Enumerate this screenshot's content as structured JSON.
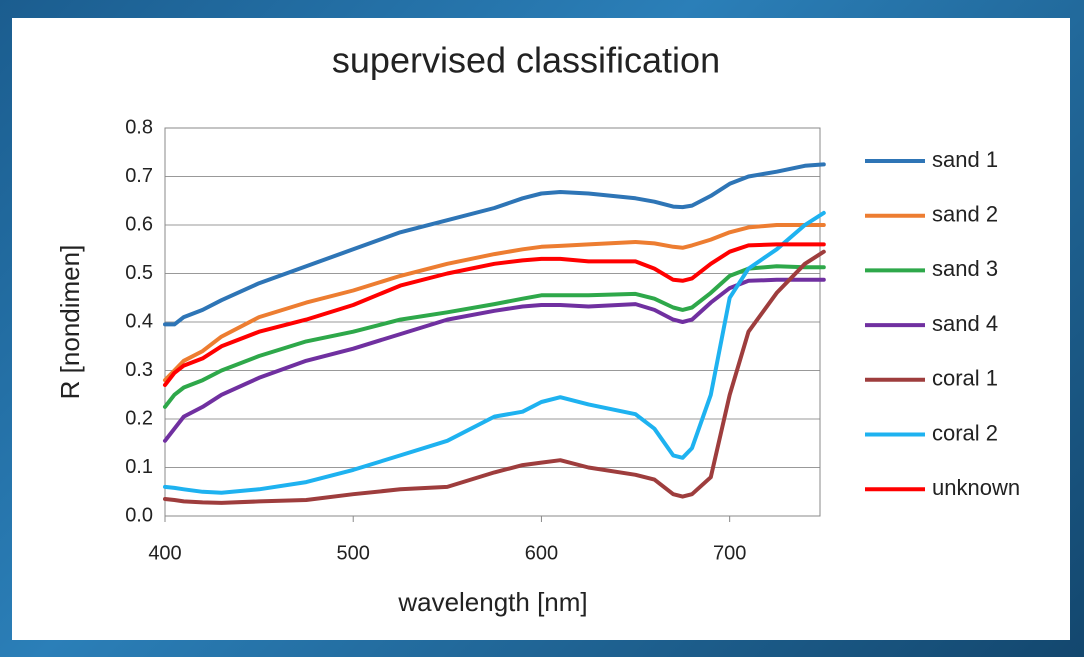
{
  "chart_data": {
    "type": "line",
    "title": "supervised classification",
    "x_label": "wavelength [nm]",
    "y_label": "R [nondimen]",
    "x": [
      400,
      405,
      410,
      420,
      430,
      450,
      475,
      500,
      525,
      550,
      575,
      590,
      600,
      610,
      625,
      650,
      660,
      670,
      675,
      680,
      690,
      700,
      710,
      725,
      740,
      750
    ],
    "series": [
      {
        "name": "sand 1",
        "color": "#2e75b6",
        "values": [
          0.395,
          0.395,
          0.41,
          0.425,
          0.445,
          0.48,
          0.515,
          0.55,
          0.585,
          0.61,
          0.635,
          0.655,
          0.665,
          0.668,
          0.665,
          0.655,
          0.648,
          0.638,
          0.637,
          0.64,
          0.66,
          0.685,
          0.7,
          0.71,
          0.722,
          0.725
        ]
      },
      {
        "name": "sand 2",
        "color": "#ed7d31",
        "values": [
          0.28,
          0.3,
          0.32,
          0.34,
          0.37,
          0.41,
          0.44,
          0.465,
          0.495,
          0.52,
          0.54,
          0.55,
          0.555,
          0.557,
          0.56,
          0.565,
          0.562,
          0.555,
          0.553,
          0.558,
          0.57,
          0.585,
          0.595,
          0.6,
          0.6,
          0.6
        ]
      },
      {
        "name": "sand 3",
        "color": "#2ea84a",
        "values": [
          0.225,
          0.25,
          0.265,
          0.28,
          0.3,
          0.33,
          0.36,
          0.38,
          0.405,
          0.42,
          0.437,
          0.448,
          0.455,
          0.455,
          0.455,
          0.458,
          0.448,
          0.43,
          0.425,
          0.43,
          0.46,
          0.495,
          0.51,
          0.515,
          0.513,
          0.513
        ]
      },
      {
        "name": "sand 4",
        "color": "#7030a0",
        "values": [
          0.155,
          0.18,
          0.205,
          0.225,
          0.25,
          0.285,
          0.32,
          0.345,
          0.375,
          0.405,
          0.423,
          0.432,
          0.435,
          0.435,
          0.432,
          0.437,
          0.425,
          0.405,
          0.4,
          0.405,
          0.44,
          0.47,
          0.485,
          0.487,
          0.487,
          0.487
        ]
      },
      {
        "name": "coral 1",
        "color": "#9e3d3d",
        "values": [
          0.035,
          0.033,
          0.03,
          0.028,
          0.027,
          0.03,
          0.033,
          0.045,
          0.055,
          0.06,
          0.09,
          0.105,
          0.11,
          0.115,
          0.1,
          0.085,
          0.075,
          0.045,
          0.04,
          0.045,
          0.08,
          0.25,
          0.38,
          0.46,
          0.52,
          0.545
        ]
      },
      {
        "name": "coral 2",
        "color": "#1eb2f0",
        "values": [
          0.06,
          0.058,
          0.055,
          0.05,
          0.048,
          0.055,
          0.07,
          0.095,
          0.125,
          0.155,
          0.205,
          0.215,
          0.235,
          0.245,
          0.23,
          0.21,
          0.18,
          0.125,
          0.12,
          0.14,
          0.25,
          0.45,
          0.51,
          0.55,
          0.6,
          0.625
        ]
      },
      {
        "name": "unknown",
        "color": "#ff0000",
        "values": [
          0.27,
          0.295,
          0.31,
          0.325,
          0.35,
          0.38,
          0.405,
          0.435,
          0.475,
          0.5,
          0.52,
          0.527,
          0.53,
          0.53,
          0.525,
          0.525,
          0.51,
          0.487,
          0.485,
          0.49,
          0.52,
          0.545,
          0.558,
          0.56,
          0.56,
          0.56
        ]
      }
    ],
    "xlim": [
      400,
      748
    ],
    "xticks": [
      400,
      500,
      600,
      700
    ],
    "ylim": [
      0,
      0.8
    ],
    "yticks": [
      {
        "value": 0,
        "label": "0.0"
      },
      0.1,
      0.2,
      0.3,
      0.4,
      0.5,
      0.6,
      0.7,
      0.8
    ],
    "grid": true
  }
}
